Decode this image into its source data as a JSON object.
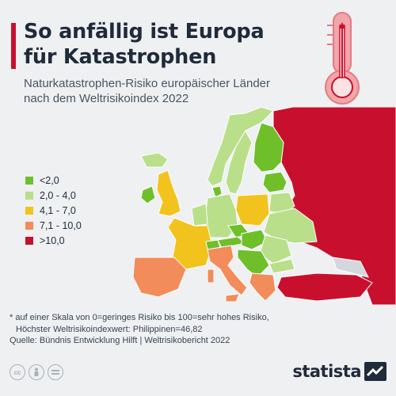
{
  "header": {
    "title_line1": "So anfällig ist Europa",
    "title_line2": "für Katastrophen",
    "subtitle_line1": "Naturkatastrophen-Risiko europäischer Länder",
    "subtitle_line2": "nach dem Weltrisikoindex 2022"
  },
  "legend": {
    "items": [
      {
        "label": "<2,0",
        "color": "#6fbf2a"
      },
      {
        "label": "2,0 - 4,0",
        "color": "#b9df8a"
      },
      {
        "label": "4,1 - 7,0",
        "color": "#f2c31c"
      },
      {
        "label": "7,1 - 10,0",
        "color": "#f28c5a"
      },
      {
        "label": ">10,0",
        "color": "#c8102e"
      }
    ]
  },
  "footnote": {
    "line1": "* auf einer Skala von 0=geringes Risiko bis 100=sehr hohes Risiko,",
    "line2": "Höchster Weltrisikoindexwert: Philippinen=46,82",
    "line3": "Quelle: Bündnis Entwicklung Hilft | Weltrisikobericht 2022"
  },
  "footer": {
    "brand": "statista",
    "license_icons": [
      "cc-icon",
      "by-icon",
      "equals-icon"
    ]
  },
  "colors": {
    "accent": "#c8102e",
    "lowest": "#6fbf2a",
    "low": "#b9df8a",
    "medium": "#f2c31c",
    "high": "#f28c5a",
    "very_high": "#c8102e",
    "no_data": "#d4d8dc"
  }
}
